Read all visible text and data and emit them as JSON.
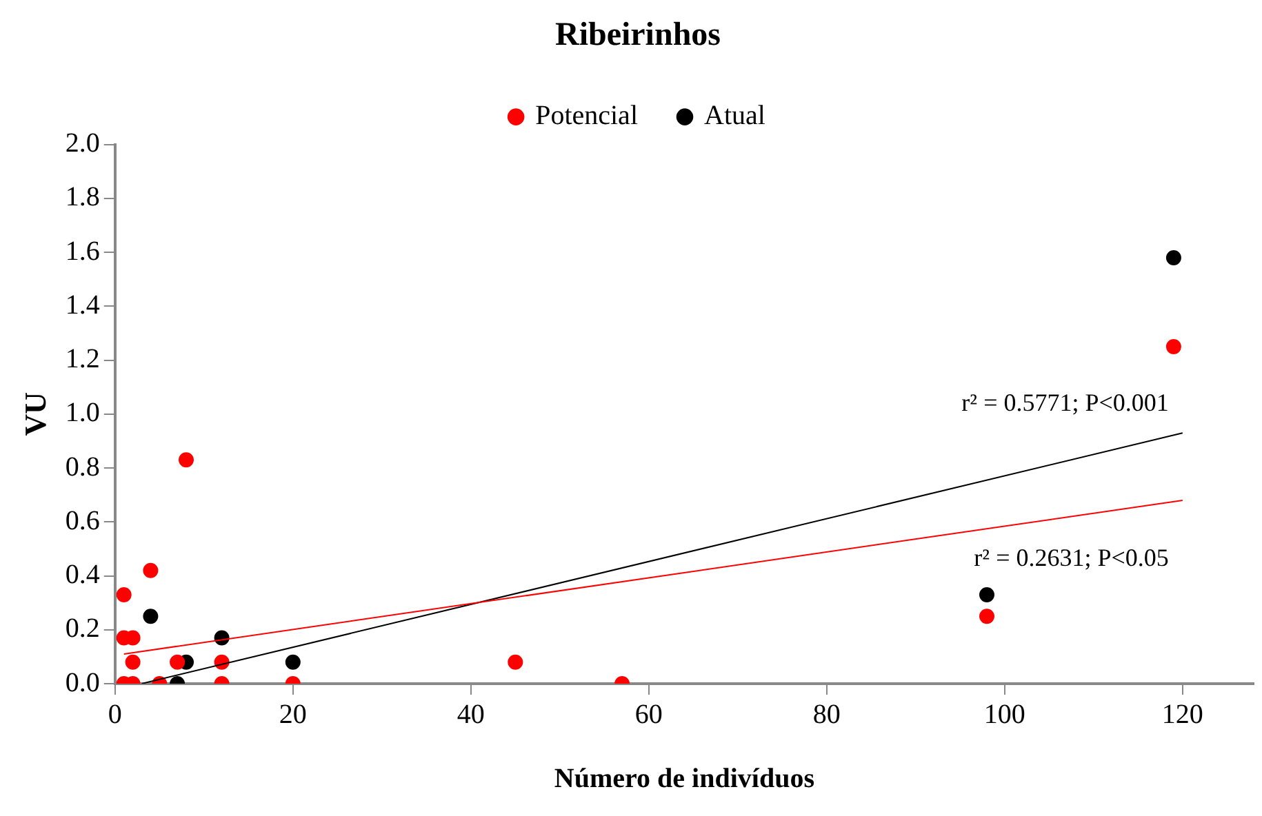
{
  "chart_data": {
    "type": "scatter",
    "title": "Ribeirinhos",
    "xlabel": "Número de indivíduos",
    "ylabel": "VU",
    "xlim": [
      0,
      128
    ],
    "xticks": [
      0,
      20,
      40,
      60,
      80,
      100,
      120
    ],
    "ylim": [
      0,
      2
    ],
    "yticks": [
      {
        "value": 0,
        "label": "0.0"
      },
      {
        "value": 0.2,
        "label": "0.2"
      },
      {
        "value": 0.4,
        "label": "0.4"
      },
      {
        "value": 0.6,
        "label": "0.6"
      },
      {
        "value": 0.8,
        "label": "0.8"
      },
      {
        "value": 1,
        "label": "1.0"
      },
      {
        "value": 1.2,
        "label": "1.2"
      },
      {
        "value": 1.4,
        "label": "1.4"
      },
      {
        "value": 1.6,
        "label": "1.6"
      },
      {
        "value": 1.8,
        "label": "1.8"
      },
      {
        "value": 2,
        "label": "2.0"
      }
    ],
    "grid": false,
    "legend": "top",
    "marker": "circle",
    "series": [
      {
        "name": "Atual",
        "color": "#000000",
        "x": [
          4,
          7,
          8,
          12,
          20,
          98,
          119
        ],
        "values": [
          0.25,
          0,
          0.08,
          0.17,
          0.08,
          0.33,
          1.58
        ]
      },
      {
        "name": "Potencial",
        "color": "#ff0000",
        "x": [
          1,
          1,
          1,
          2,
          2,
          2,
          4,
          5,
          7,
          8,
          12,
          12,
          20,
          45,
          57,
          98,
          119
        ],
        "values": [
          0.33,
          0.17,
          0,
          0.17,
          0.08,
          0,
          0.42,
          0,
          0.08,
          0.83,
          0.08,
          0,
          0,
          0.08,
          0,
          0.25,
          1.25
        ]
      },
      {
        "type": "line",
        "color": "#000000",
        "marker": "none",
        "x": [
          3,
          120
        ],
        "values": [
          0,
          0.93
        ]
      },
      {
        "type": "line",
        "color": "#ff0000",
        "marker": "none",
        "x": [
          1,
          120
        ],
        "values": [
          0.11,
          0.68
        ]
      }
    ],
    "annotations": [
      "r² = 0.5771; P<0.001",
      "r² = 0.2631; P<0.05"
    ]
  }
}
